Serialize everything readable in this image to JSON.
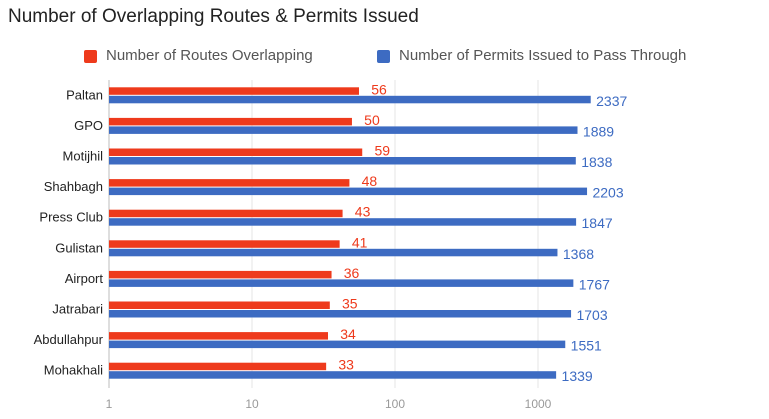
{
  "title": "Number of Overlapping Routes & Permits Issued",
  "chart_data": {
    "type": "bar",
    "orientation": "horizontal",
    "title": "Number of Overlapping Routes & Permits Issued",
    "categories": [
      "Paltan",
      "GPO",
      "Motijhil",
      "Shahbagh",
      "Press Club",
      "Gulistan",
      "Airport",
      "Jatrabari",
      "Abdullahpur",
      "Mohakhali"
    ],
    "series": [
      {
        "name": "Number of Routes Overlapping",
        "color": "#ee3a1c",
        "values": [
          56,
          50,
          59,
          48,
          43,
          41,
          36,
          35,
          34,
          33
        ]
      },
      {
        "name": "Number of Permits Issued to Pass Through",
        "color": "#3d6bc2",
        "values": [
          2337,
          1889,
          1838,
          2203,
          1847,
          1368,
          1767,
          1703,
          1551,
          1339
        ]
      }
    ],
    "x_axis": {
      "scale": "log",
      "ticks": [
        "1",
        "10",
        "100",
        "1000"
      ],
      "range": [
        1,
        3500
      ]
    },
    "legend": "top",
    "grid": true
  }
}
